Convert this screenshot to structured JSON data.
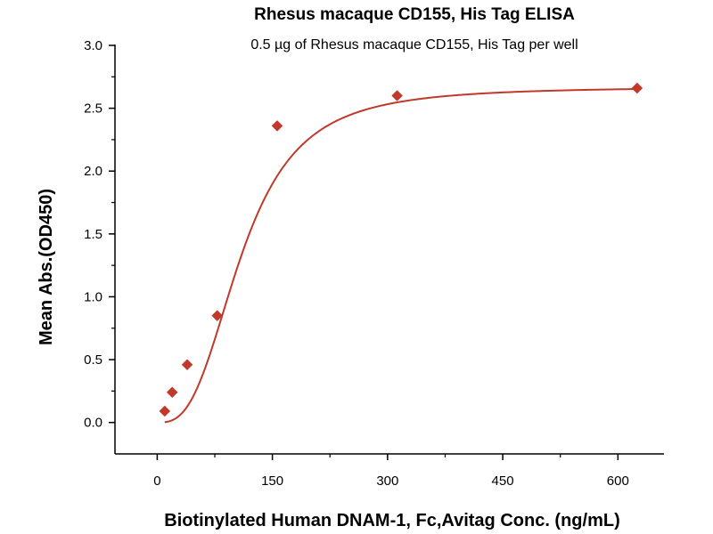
{
  "chart_data": {
    "type": "scatter",
    "title": "Rhesus macaque CD155, His Tag ELISA",
    "subtitle": "0.5 µg of Rhesus macaque CD155, His Tag per well",
    "xlabel": "Biotinylated Human DNAM-1, Fc,Avitag Conc. (ng/mL)",
    "ylabel": "Mean Abs.(OD450)",
    "xlim": [
      -55,
      660
    ],
    "ylim": [
      -0.25,
      3.0
    ],
    "xticks": [
      0,
      150,
      300,
      450,
      600
    ],
    "xtick_labels": [
      "0",
      "150",
      "300",
      "450",
      "600"
    ],
    "yticks": [
      0.0,
      0.5,
      1.0,
      1.5,
      2.0,
      2.5,
      3.0
    ],
    "ytick_labels": [
      "0.0",
      "0.5",
      "1.0",
      "1.5",
      "2.0",
      "2.5",
      "3.0"
    ],
    "grid": false,
    "colors": {
      "series": "#c0392b",
      "axis": "#000000"
    },
    "series": [
      {
        "marker": "diamond",
        "x": [
          9.77,
          19.53,
          39.06,
          78.13,
          156.25,
          312.5,
          625
        ],
        "y": [
          0.09,
          0.24,
          0.46,
          0.85,
          2.36,
          2.6,
          2.66
        ]
      }
    ],
    "fit": {
      "type": "4PL",
      "bottom": 0.0,
      "top": 2.67,
      "ec50": 110,
      "hill": 2.9
    }
  }
}
